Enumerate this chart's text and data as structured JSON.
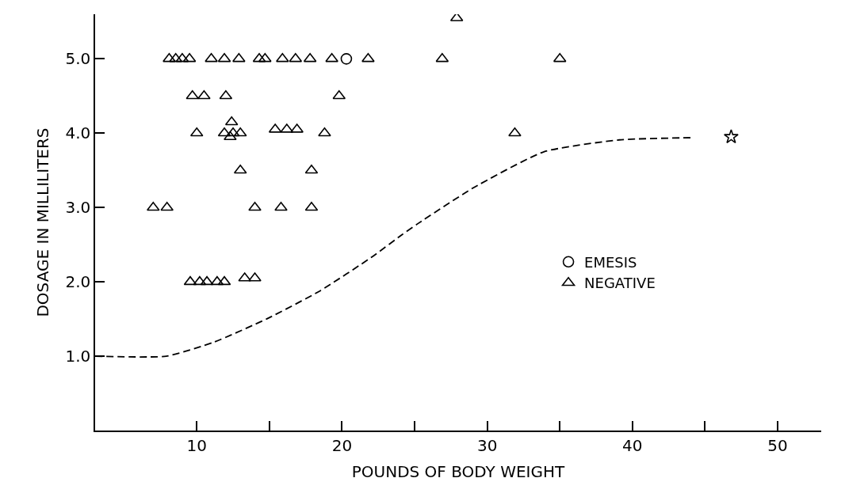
{
  "chart_data": {
    "type": "scatter",
    "xlabel": "POUNDS OF BODY WEIGHT",
    "ylabel": "DOSAGE IN MILLILITERS",
    "xlim": [
      3,
      53
    ],
    "ylim": [
      0,
      5.6
    ],
    "xticks": [
      {
        "value": 10,
        "label": "10"
      },
      {
        "value": 15,
        "label": null
      },
      {
        "value": 20,
        "label": "20"
      },
      {
        "value": 25,
        "label": null
      },
      {
        "value": 30,
        "label": "30"
      },
      {
        "value": 35,
        "label": null
      },
      {
        "value": 40,
        "label": "40"
      },
      {
        "value": 45,
        "label": null
      },
      {
        "value": 50,
        "label": "50"
      }
    ],
    "yticks": [
      {
        "value": 1,
        "label": "1.0"
      },
      {
        "value": 2,
        "label": "2.0"
      },
      {
        "value": 3,
        "label": "3.0"
      },
      {
        "value": 4,
        "label": "4.0"
      },
      {
        "value": 5,
        "label": "5.0"
      }
    ],
    "legend": "right",
    "series": [
      {
        "name": "EMESIS",
        "color": "#000000",
        "marker": "circle",
        "x": [
          20.3
        ],
        "values": [
          5.0
        ]
      },
      {
        "name": "NEGATIVE",
        "color": "#000000",
        "marker": "triangle",
        "x": [
          8.1,
          8.55,
          9.0,
          9.5,
          11.0,
          11.9,
          12.9,
          14.3,
          14.7,
          15.9,
          16.8,
          17.8,
          19.3,
          21.8,
          26.9,
          35.0,
          27.9,
          9.7,
          10.5,
          12.0,
          19.8,
          10.0,
          12.4,
          11.9,
          12.3,
          12.5,
          13.0,
          15.4,
          16.2,
          16.9,
          18.8,
          31.9,
          13.0,
          17.9,
          7.0,
          7.95,
          14.0,
          15.8,
          17.9,
          9.55,
          10.2,
          10.7,
          11.4,
          11.9,
          13.3,
          14.0
        ],
        "values": [
          5.0,
          5.0,
          5.0,
          5.0,
          5.0,
          5.0,
          5.0,
          5.0,
          5.0,
          5.0,
          5.0,
          5.0,
          5.0,
          5.0,
          5.0,
          5.0,
          5.55,
          4.5,
          4.5,
          4.5,
          4.5,
          4.0,
          4.15,
          4.0,
          3.95,
          4.0,
          4.0,
          4.05,
          4.05,
          4.05,
          4.0,
          4.0,
          3.5,
          3.5,
          3.0,
          3.0,
          3.0,
          3.0,
          3.0,
          2.0,
          2.0,
          2.0,
          2.0,
          2.0,
          2.05,
          2.05
        ]
      },
      {
        "color": "#000000",
        "marker": "star",
        "x": [
          46.8
        ],
        "values": [
          3.95
        ]
      },
      {
        "type": "line",
        "color": "#000000",
        "line_style": "dashed",
        "marker": "none",
        "x": [
          3.0,
          7.9,
          11.2,
          14.8,
          18.5,
          22.1,
          24.1,
          25.2,
          29.0,
          33.9,
          39.1,
          44.2
        ],
        "values": [
          1.0,
          1.0,
          1.19,
          1.5,
          1.88,
          2.34,
          2.63,
          2.78,
          3.26,
          3.75,
          3.91,
          3.94
        ]
      }
    ]
  }
}
